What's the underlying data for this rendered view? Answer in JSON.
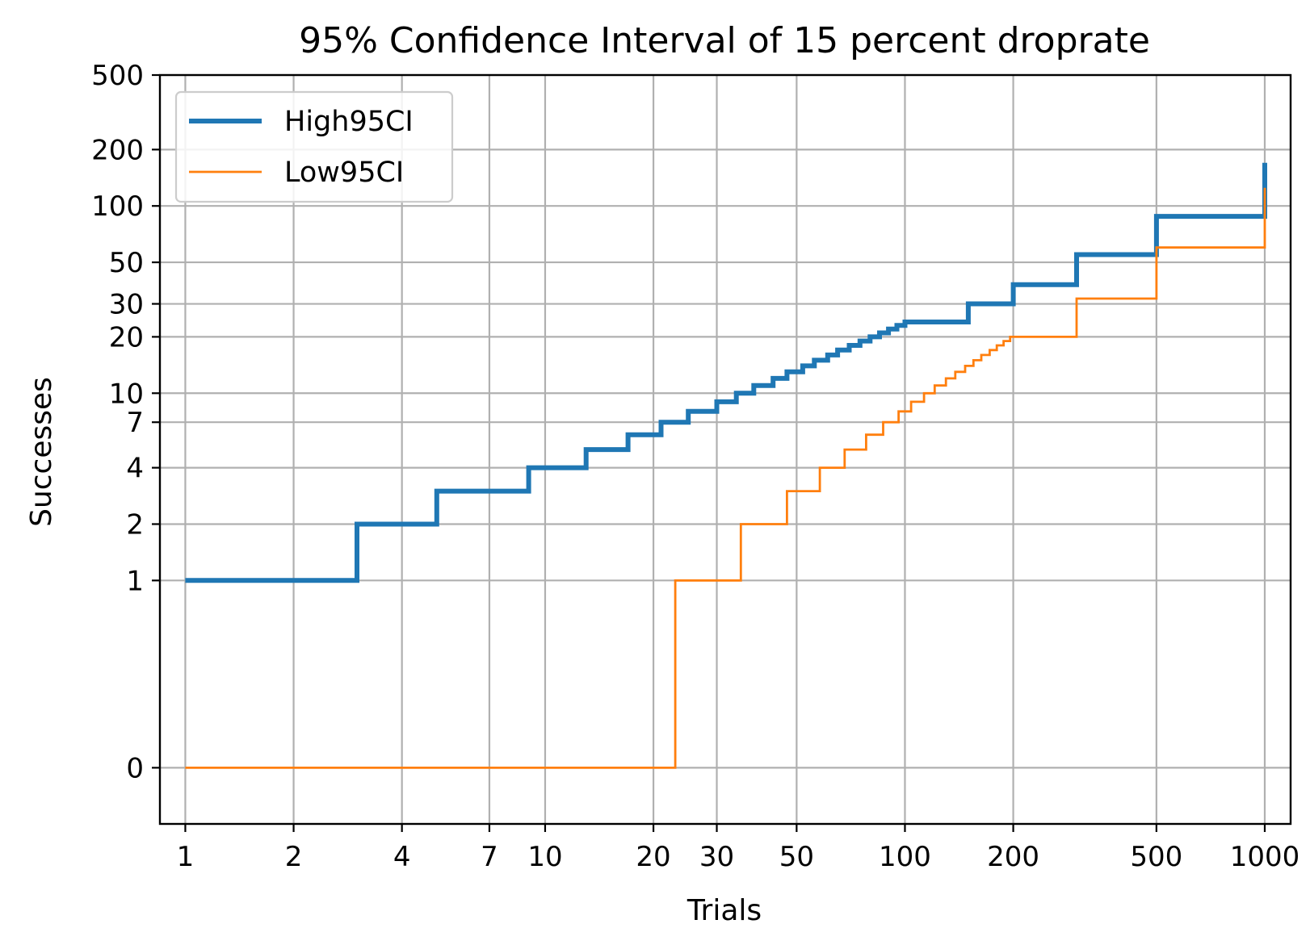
{
  "chart_data": {
    "type": "line",
    "title": "95% Confidence Interval of 15 percent droprate",
    "xlabel": "Trials",
    "ylabel": "Successes",
    "x_scale": "log",
    "y_scale": "symlog",
    "xlim": [
      0.85,
      1180
    ],
    "ylim": [
      -0.3,
      500
    ],
    "grid": true,
    "legend_position": "top-left",
    "x_ticks": [
      {
        "value": 1,
        "label": "1"
      },
      {
        "value": 2,
        "label": "2"
      },
      {
        "value": 4,
        "label": "4"
      },
      {
        "value": 7,
        "label": "7"
      },
      {
        "value": 10,
        "label": "10"
      },
      {
        "value": 20,
        "label": "20"
      },
      {
        "value": 30,
        "label": "30"
      },
      {
        "value": 50,
        "label": "50"
      },
      {
        "value": 100,
        "label": "100"
      },
      {
        "value": 200,
        "label": "200"
      },
      {
        "value": 500,
        "label": "500"
      },
      {
        "value": 1000,
        "label": "1000"
      }
    ],
    "y_ticks": [
      {
        "value": 0,
        "label": "0"
      },
      {
        "value": 1,
        "label": "1"
      },
      {
        "value": 2,
        "label": "2"
      },
      {
        "value": 4,
        "label": "4"
      },
      {
        "value": 7,
        "label": "7"
      },
      {
        "value": 10,
        "label": "10"
      },
      {
        "value": 20,
        "label": "20"
      },
      {
        "value": 30,
        "label": "30"
      },
      {
        "value": 50,
        "label": "50"
      },
      {
        "value": 100,
        "label": "100"
      },
      {
        "value": 200,
        "label": "200"
      },
      {
        "value": 500,
        "label": "500"
      }
    ],
    "series": [
      {
        "name": "High95CI",
        "color": "#1f77b4",
        "style": "thick",
        "steps": [
          [
            1,
            1
          ],
          [
            3,
            2
          ],
          [
            5,
            3
          ],
          [
            9,
            4
          ],
          [
            13,
            5
          ],
          [
            17,
            6
          ],
          [
            21,
            7
          ],
          [
            25,
            8
          ],
          [
            30,
            9
          ],
          [
            34,
            10
          ],
          [
            38,
            11
          ],
          [
            43,
            12
          ],
          [
            47,
            13
          ],
          [
            52,
            14
          ],
          [
            56,
            15
          ],
          [
            61,
            16
          ],
          [
            65,
            17
          ],
          [
            70,
            18
          ],
          [
            75,
            19
          ],
          [
            80,
            20
          ],
          [
            85,
            21
          ],
          [
            90,
            22
          ],
          [
            95,
            23
          ],
          [
            100,
            24
          ],
          [
            150,
            30
          ],
          [
            200,
            38
          ],
          [
            300,
            55
          ],
          [
            500,
            88
          ],
          [
            1000,
            170
          ]
        ]
      },
      {
        "name": "Low95CI",
        "color": "#ff7f0e",
        "style": "thin",
        "steps": [
          [
            1,
            0
          ],
          [
            23,
            1
          ],
          [
            35,
            2
          ],
          [
            47,
            3
          ],
          [
            58,
            4
          ],
          [
            68,
            5
          ],
          [
            78,
            6
          ],
          [
            87,
            7
          ],
          [
            96,
            8
          ],
          [
            104,
            9
          ],
          [
            113,
            10
          ],
          [
            121,
            11
          ],
          [
            130,
            12
          ],
          [
            138,
            13
          ],
          [
            147,
            14
          ],
          [
            155,
            15
          ],
          [
            163,
            16
          ],
          [
            172,
            17
          ],
          [
            180,
            18
          ],
          [
            188,
            19
          ],
          [
            196,
            20
          ],
          [
            300,
            32
          ],
          [
            500,
            60
          ],
          [
            1000,
            125
          ]
        ]
      }
    ]
  }
}
